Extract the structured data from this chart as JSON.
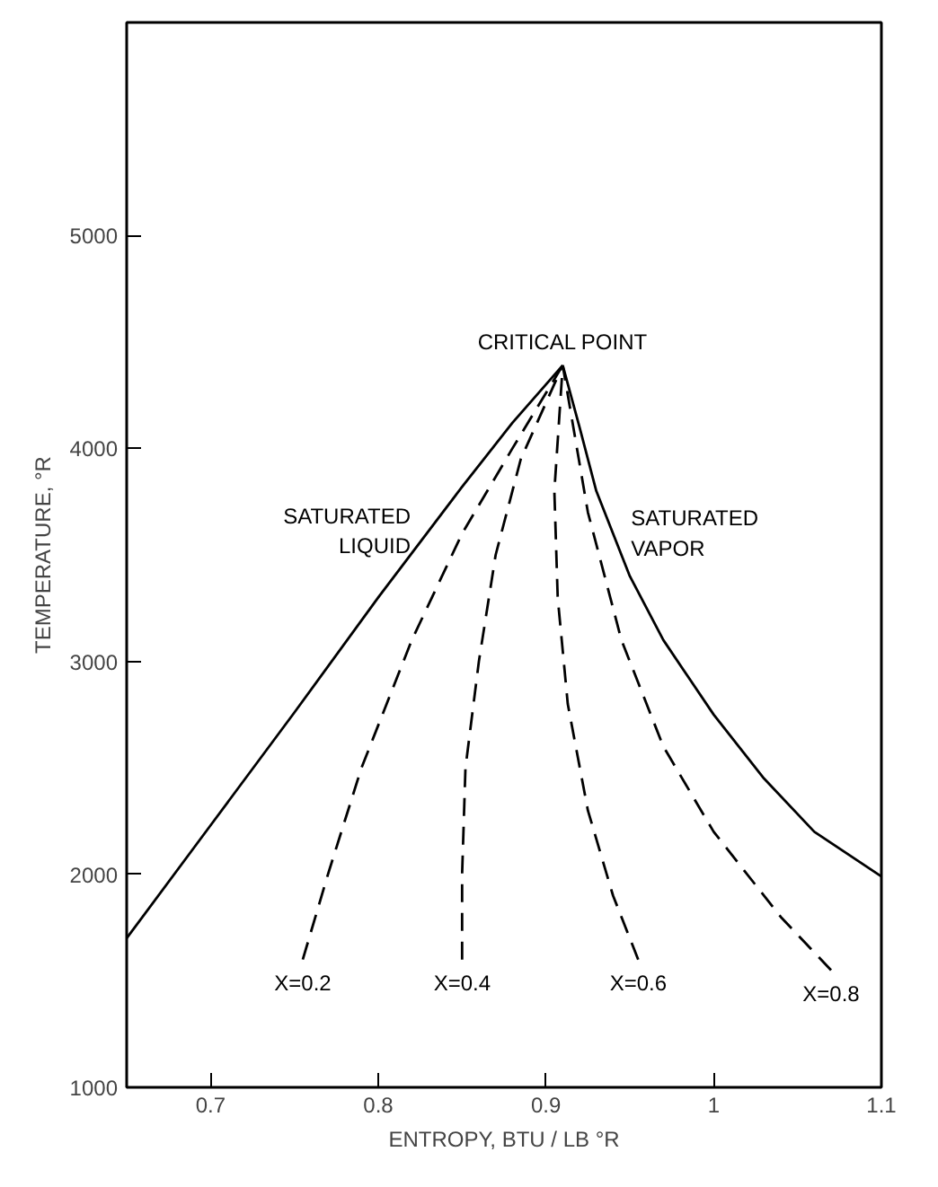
{
  "chart_data": {
    "type": "line",
    "xlabel": "ENTROPY, BTU / LB °R",
    "ylabel": "TEMPERATURE, °R",
    "xlim": [
      0.65,
      1.1
    ],
    "ylim": [
      1000,
      6000
    ],
    "xticks": [
      0.7,
      0.8,
      0.9,
      1.0,
      1.1
    ],
    "yticks": [
      1000,
      2000,
      3000,
      4000,
      5000
    ],
    "grid": false,
    "marker": "none",
    "series": [
      {
        "color": "#000000",
        "line_style": "solid",
        "x": [
          0.65,
          0.7,
          0.75,
          0.8,
          0.85,
          0.88,
          0.91
        ],
        "values": [
          1700,
          2230,
          2760,
          3300,
          3820,
          4120,
          4390
        ]
      },
      {
        "color": "#000000",
        "line_style": "solid",
        "x": [
          0.91,
          0.92,
          0.93,
          0.95,
          0.97,
          1.0,
          1.03,
          1.06,
          1.1
        ],
        "values": [
          4390,
          4100,
          3800,
          3400,
          3100,
          2750,
          2450,
          2200,
          1990
        ]
      },
      {
        "name": "X=0.2",
        "color": "#000000",
        "line_style": "dashed",
        "x": [
          0.755,
          0.77,
          0.79,
          0.82,
          0.85,
          0.88,
          0.91
        ],
        "values": [
          1600,
          2000,
          2500,
          3100,
          3600,
          4000,
          4390
        ]
      },
      {
        "name": "X=0.4",
        "color": "#000000",
        "line_style": "dashed",
        "x": [
          0.85,
          0.85,
          0.852,
          0.86,
          0.87,
          0.885,
          0.91
        ],
        "values": [
          1600,
          2000,
          2500,
          3000,
          3500,
          3950,
          4390
        ]
      },
      {
        "name": "X=0.6",
        "color": "#000000",
        "line_style": "dashed",
        "x": [
          0.955,
          0.94,
          0.925,
          0.913,
          0.907,
          0.905,
          0.91
        ],
        "values": [
          1600,
          1900,
          2300,
          2800,
          3300,
          3800,
          4390
        ]
      },
      {
        "name": "X=0.8",
        "color": "#000000",
        "line_style": "dashed",
        "x": [
          1.07,
          1.04,
          1.0,
          0.97,
          0.945,
          0.925,
          0.91
        ],
        "values": [
          1550,
          1800,
          2200,
          2600,
          3100,
          3700,
          4390
        ]
      }
    ],
    "annotations": [
      {
        "text": "CRITICAL POINT",
        "x": 0.91,
        "y": 4390
      },
      {
        "text": "SATURATED\nLIQUID",
        "x": 0.83,
        "y": 3612
      },
      {
        "text": "SATURATED\nVAPOR",
        "x": 0.94,
        "y": 3600
      }
    ]
  }
}
